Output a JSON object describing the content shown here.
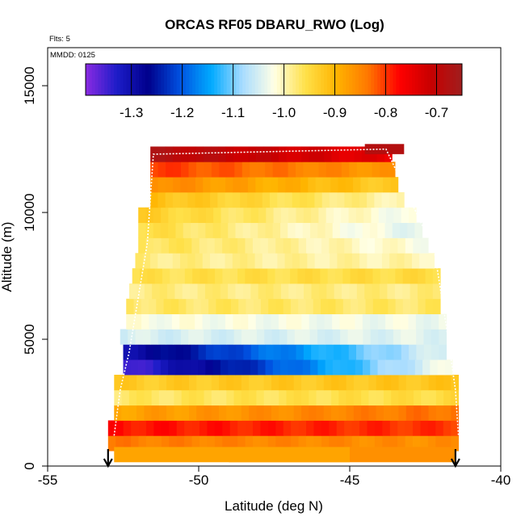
{
  "chart_data": {
    "type": "heatmap",
    "title": "ORCAS RF05 DBARU_RWO (Log)",
    "annotations": {
      "flights": "Flts: 5",
      "mmdd": "MMDD: 0125"
    },
    "xlabel": "Latitude (deg N)",
    "ylabel": "Altitude (m)",
    "xlim": [
      -55,
      -40
    ],
    "ylim": [
      0,
      16500
    ],
    "x_ticks": [
      -55,
      -50,
      -45,
      -40
    ],
    "x_tick_labels": [
      "-55",
      "-50",
      "-45",
      "-40"
    ],
    "y_ticks": [
      0,
      5000,
      10000,
      15000
    ],
    "y_tick_labels": [
      "0",
      "5000",
      "10000",
      "15000"
    ],
    "colorbar": {
      "range": [
        -1.39,
        -0.65
      ],
      "ticks": [
        -1.3,
        -1.2,
        -1.1,
        -1.0,
        -0.9,
        -0.8,
        -0.7
      ],
      "tick_labels": [
        "-1.3",
        "-1.2",
        "-1.1",
        "-1.0",
        "-0.9",
        "-0.8",
        "-0.7"
      ],
      "colors": [
        "#8a2be2",
        "#1c1cc8",
        "#00008b",
        "#0050e0",
        "#00aaff",
        "#a8dcff",
        "#ffffe6",
        "#ffe14a",
        "#ffb400",
        "#ff7800",
        "#ff0000",
        "#c80000",
        "#a01e1e"
      ],
      "placement": "top"
    },
    "column_starts": [
      -52.8,
      -52.8,
      -52.6,
      -52.6,
      -52.4,
      -52.4,
      -52.2,
      -52.2,
      -52.0,
      -52.0,
      -51.8,
      -51.5,
      -51.5
    ],
    "column_ends": [
      -42.2,
      -41.5,
      -41.5,
      -41.5,
      -41.5,
      -41.5,
      -41.5,
      -41.5,
      -41.5,
      -42.0,
      -42.0,
      -43.0,
      -43.0
    ],
    "altitudes_m": [
      900,
      1500,
      2100,
      2700,
      3300,
      3900,
      4500,
      5100,
      5700,
      6300,
      6900,
      7500,
      8100,
      8700,
      9300,
      9900,
      10500,
      11100,
      11700,
      12300
    ],
    "rows": [
      {
        "alt": 900,
        "x0": -53.0,
        "x1": -41.4,
        "v0": -0.84,
        "v1": -0.86
      },
      {
        "alt": 1500,
        "x0": -53.0,
        "x1": -41.4,
        "v0": -0.78,
        "v1": -0.8
      },
      {
        "alt": 2100,
        "x0": -52.8,
        "x1": -41.4,
        "v0": -0.88,
        "v1": -0.83
      },
      {
        "alt": 2700,
        "x0": -52.8,
        "x1": -41.4,
        "v0": -0.97,
        "v1": -0.95
      },
      {
        "alt": 3300,
        "x0": -52.8,
        "x1": -41.4,
        "v0": -0.93,
        "v1": -0.92
      },
      {
        "alt": 3900,
        "x0": -52.5,
        "x1": -41.6,
        "v0": -1.36,
        "v1": -1.02
      },
      {
        "alt": 4500,
        "x0": -52.5,
        "x1": -41.8,
        "v0": -1.3,
        "v1": -1.04
      },
      {
        "alt": 5100,
        "x0": -52.6,
        "x1": -41.8,
        "v0": -1.05,
        "v1": -1.04
      },
      {
        "alt": 5700,
        "x0": -52.4,
        "x1": -41.8,
        "v0": -1.02,
        "v1": -1.03
      },
      {
        "alt": 6300,
        "x0": -52.4,
        "x1": -42.0,
        "v0": -0.97,
        "v1": -0.97
      },
      {
        "alt": 6900,
        "x0": -52.3,
        "x1": -42.0,
        "v0": -0.98,
        "v1": -0.98
      },
      {
        "alt": 7500,
        "x0": -52.2,
        "x1": -42.0,
        "v0": -0.96,
        "v1": -0.95
      },
      {
        "alt": 8100,
        "x0": -52.1,
        "x1": -42.2,
        "v0": -0.98,
        "v1": -1.0
      },
      {
        "alt": 8700,
        "x0": -52.0,
        "x1": -42.4,
        "v0": -0.96,
        "v1": -1.02
      },
      {
        "alt": 9300,
        "x0": -52.0,
        "x1": -42.6,
        "v0": -0.95,
        "v1": -1.04
      },
      {
        "alt": 9900,
        "x0": -52.0,
        "x1": -42.8,
        "v0": -0.93,
        "v1": -1.03
      },
      {
        "alt": 10500,
        "x0": -51.6,
        "x1": -43.2,
        "v0": -0.91,
        "v1": -1.0
      },
      {
        "alt": 11100,
        "x0": -51.6,
        "x1": -43.4,
        "v0": -0.85,
        "v1": -0.93
      },
      {
        "alt": 11700,
        "x0": -51.6,
        "x1": -43.5,
        "v0": -0.8,
        "v1": -0.87
      },
      {
        "alt": 12300,
        "x0": -51.6,
        "x1": -43.6,
        "v0": -0.68,
        "v1": -0.75
      }
    ],
    "flight_track": [
      [
        -52.8,
        1200
      ],
      [
        -52.6,
        3000
      ],
      [
        -52.3,
        4500
      ],
      [
        -51.7,
        8800
      ],
      [
        -51.5,
        12300
      ],
      [
        -43.8,
        12500
      ],
      [
        -42.2,
        8500
      ],
      [
        -41.8,
        5500
      ],
      [
        -41.5,
        3000
      ],
      [
        -41.4,
        1200
      ]
    ],
    "markers": [
      {
        "type": "down-arrow",
        "x": -53.0
      },
      {
        "type": "down-arrow",
        "x": -41.5
      }
    ]
  }
}
